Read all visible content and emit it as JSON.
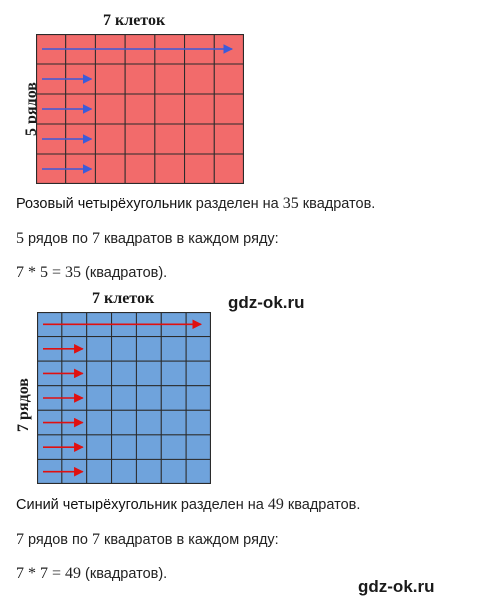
{
  "pink": {
    "cols_label": "7 клеток",
    "rows_label": "5 рядов",
    "cols": 7,
    "rows": 5,
    "fill": "#f26b6b",
    "grid_line": "#2b2b2b",
    "arrow_color": "#3b5bdb",
    "text": {
      "lead": "Розовый четырёхугольник",
      "mid": " разделен на ",
      "n": "35",
      "tail": " квадратов."
    },
    "line2": {
      "a": "5",
      "b": " рядов по ",
      "c": "7",
      "d": " квадратов в каждом ряду:"
    },
    "line3": {
      "a": "7 * 5 = 35",
      "b": " (квадратов)."
    }
  },
  "blue": {
    "cols_label": "7 клеток",
    "rows_label": "7 рядов",
    "cols": 7,
    "rows": 7,
    "fill": "#6fa3dc",
    "grid_line": "#2b2b2b",
    "arrow_color": "#e01010",
    "text": {
      "lead": "Синий четырёхугольник",
      "mid": " разделен на ",
      "n": "49",
      "tail": " квадратов."
    },
    "line2": {
      "a": "7",
      "b": " рядов по ",
      "c": "7",
      "d": " квадратов в каждом ряду:"
    },
    "line3": {
      "a": "7 * 7 = 49",
      "b": " (квадратов)."
    }
  },
  "watermark": "gdz-ok.ru"
}
